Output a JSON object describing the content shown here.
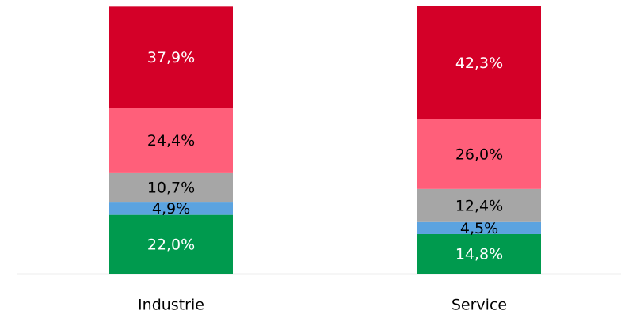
{
  "chart_data": {
    "type": "stacked_bar",
    "categories": [
      "Industrie",
      "Service"
    ],
    "series": [
      {
        "color": "#009a4e",
        "label_color": "#ffffff",
        "values": [
          22.0,
          14.8
        ],
        "value_labels": [
          "22,0%",
          "14,8%"
        ]
      },
      {
        "color": "#5ba3e0",
        "label_color": "#000000",
        "values": [
          4.9,
          4.5
        ],
        "value_labels": [
          "4,9%",
          "4,5%"
        ]
      },
      {
        "color": "#a6a6a6",
        "label_color": "#000000",
        "values": [
          10.7,
          12.4
        ],
        "value_labels": [
          "10,7%",
          "12,4%"
        ]
      },
      {
        "color": "#ff5f7a",
        "label_color": "#000000",
        "values": [
          24.4,
          26.0
        ],
        "value_labels": [
          "24,4%",
          "26,0%"
        ]
      },
      {
        "color": "#d40028",
        "label_color": "#ffffff",
        "values": [
          37.9,
          42.3
        ],
        "value_labels": [
          "37,9%",
          "42,3%"
        ]
      }
    ],
    "ylim": [
      0,
      100
    ]
  }
}
